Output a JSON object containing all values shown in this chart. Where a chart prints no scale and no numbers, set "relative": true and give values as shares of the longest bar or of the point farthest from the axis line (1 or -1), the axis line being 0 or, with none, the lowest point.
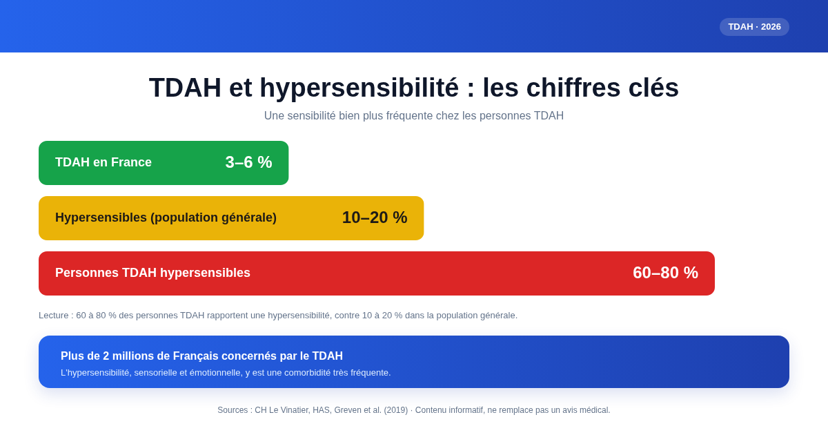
{
  "chart_data": {
    "type": "bar",
    "orientation": "horizontal",
    "relative": true,
    "tick_labels": "y",
    "title": "TDAH et hypersensibilité : les chiffres clés",
    "subtitle": "Une sensibilité bien plus fréquente chez les personnes TDAH",
    "categories": [
      "TDAH en France",
      "Hypersensibles (population générale)",
      "Personnes TDAH hypersensibles"
    ],
    "values": [
      0.37,
      0.57,
      1
    ],
    "colors": [
      "#16a34a",
      "#eab308",
      "#dc2626"
    ],
    "annotations": [
      "TDAH · 2026",
      {
        "text": "3–6 %",
        "x": 0.37,
        "y": "TDAH en France"
      },
      {
        "text": "10–20 %",
        "x": 0.57,
        "y": "Hypersensibles (population générale)"
      },
      {
        "text": "60–80 %",
        "x": 1,
        "y": "Personnes TDAH hypersensibles"
      },
      "Lecture : 60 à 80 % des personnes TDAH rapportent une hypersensibilité, contre 10 à 20 % dans la population générale.",
      "Plus de 2 millions de Français concernés par le TDAH",
      "L'hypersensibilité, sensorielle et émotionnelle, y est une comorbidité très fréquente.",
      "Sources : CH Le Vinatier, HAS, Greven et al. (2019) · Contenu informatif, ne remplace pas un avis médical."
    ]
  }
}
